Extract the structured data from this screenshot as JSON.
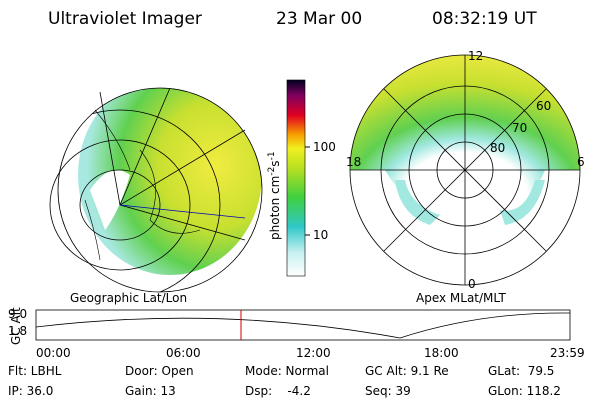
{
  "header": {
    "title": "Ultraviolet Imager",
    "date": "23 Mar 00",
    "time": "08:32:19 UT"
  },
  "left_panel": {
    "label": "Geographic Lat/Lon"
  },
  "colorbar": {
    "unit": "photon cm",
    "exponent_1": "-2",
    "unit_2": "s",
    "exponent_2": "-1",
    "ticks": [
      "100",
      "10"
    ]
  },
  "right_panel": {
    "label": "Apex MLat/MLT",
    "mlt_labels": [
      "12",
      "18",
      "6",
      "0"
    ],
    "mlat_labels": [
      "60",
      "70",
      "80"
    ]
  },
  "altitude_plot": {
    "ylabel": "GC Alt",
    "yticks": [
      "9.0",
      "1.8"
    ],
    "xticks": [
      "00:00",
      "06:00",
      "12:00",
      "18:00",
      "23:59"
    ]
  },
  "status": {
    "rows": [
      [
        "Flt: LBHL",
        "Door: Open",
        "Mode: Normal",
        "GC Alt: 9.1 Re",
        "GLat:  79.5"
      ],
      [
        "IP: 36.0",
        "Gain: 13",
        "Dsp:    -4.2",
        "Seq: 39",
        "GLon: 118.2"
      ]
    ]
  }
}
